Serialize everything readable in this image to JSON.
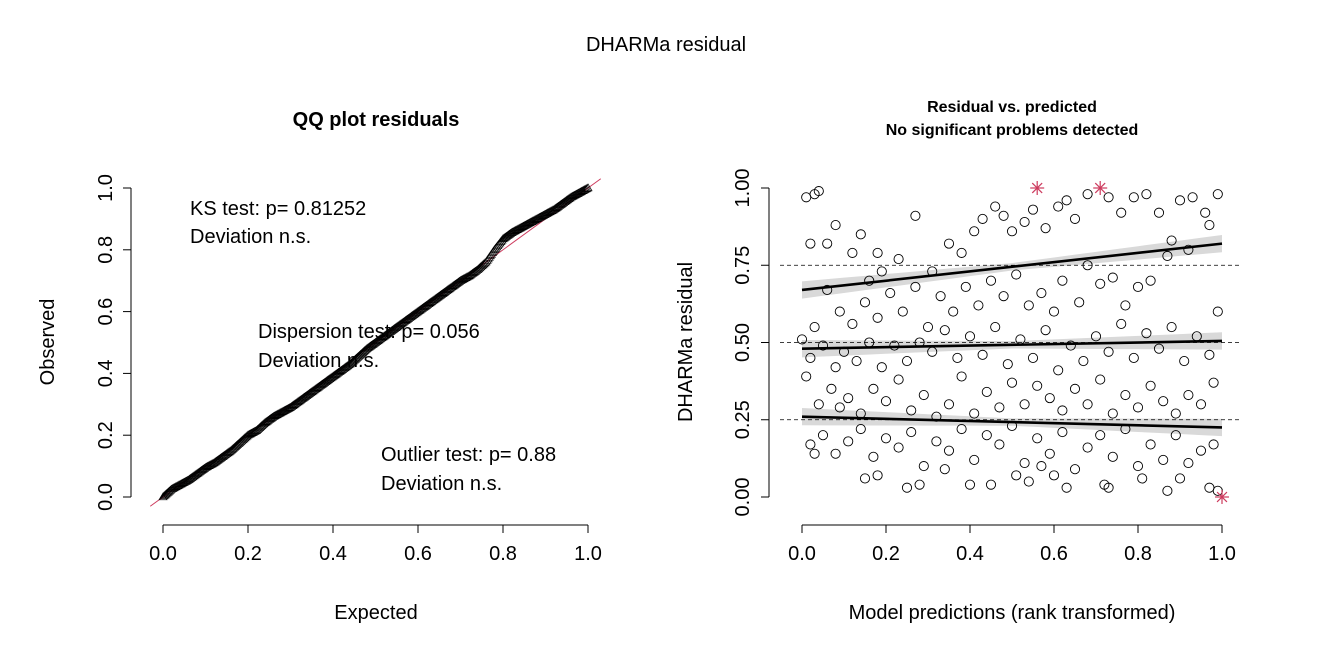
{
  "figure": {
    "title": "DHARMa residual"
  },
  "chart_data": [
    {
      "type": "scatter",
      "title": "QQ plot residuals",
      "xlabel": "Expected",
      "ylabel": "Observed",
      "xlim": [
        0,
        1
      ],
      "ylim": [
        0,
        1
      ],
      "x_ticks": [
        "0.0",
        "0.2",
        "0.4",
        "0.6",
        "0.8",
        "1.0"
      ],
      "y_ticks": [
        "0.0",
        "0.2",
        "0.4",
        "0.6",
        "0.8",
        "1.0"
      ],
      "reference_line": {
        "from": [
          0,
          0
        ],
        "to": [
          1,
          1
        ],
        "color": "#cd3b5e"
      },
      "series": [
        {
          "marker": "triangle",
          "points": [
            [
              0,
              0
            ],
            [
              0.02,
              0.025
            ],
            [
              0.04,
              0.04
            ],
            [
              0.06,
              0.055
            ],
            [
              0.08,
              0.075
            ],
            [
              0.1,
              0.095
            ],
            [
              0.12,
              0.11
            ],
            [
              0.14,
              0.13
            ],
            [
              0.16,
              0.15
            ],
            [
              0.18,
              0.175
            ],
            [
              0.2,
              0.2
            ],
            [
              0.22,
              0.215
            ],
            [
              0.24,
              0.24
            ],
            [
              0.26,
              0.26
            ],
            [
              0.28,
              0.275
            ],
            [
              0.3,
              0.29
            ],
            [
              0.32,
              0.31
            ],
            [
              0.34,
              0.33
            ],
            [
              0.36,
              0.35
            ],
            [
              0.38,
              0.37
            ],
            [
              0.4,
              0.39
            ],
            [
              0.42,
              0.41
            ],
            [
              0.44,
              0.43
            ],
            [
              0.46,
              0.455
            ],
            [
              0.48,
              0.48
            ],
            [
              0.5,
              0.5
            ],
            [
              0.52,
              0.52
            ],
            [
              0.54,
              0.54
            ],
            [
              0.56,
              0.56
            ],
            [
              0.58,
              0.58
            ],
            [
              0.6,
              0.6
            ],
            [
              0.62,
              0.62
            ],
            [
              0.64,
              0.64
            ],
            [
              0.66,
              0.66
            ],
            [
              0.68,
              0.68
            ],
            [
              0.7,
              0.7
            ],
            [
              0.72,
              0.715
            ],
            [
              0.74,
              0.735
            ],
            [
              0.76,
              0.76
            ],
            [
              0.78,
              0.8
            ],
            [
              0.8,
              0.835
            ],
            [
              0.82,
              0.855
            ],
            [
              0.84,
              0.87
            ],
            [
              0.86,
              0.885
            ],
            [
              0.88,
              0.9
            ],
            [
              0.9,
              0.915
            ],
            [
              0.92,
              0.93
            ],
            [
              0.94,
              0.95
            ],
            [
              0.96,
              0.97
            ],
            [
              0.98,
              0.985
            ],
            [
              1,
              1
            ]
          ]
        }
      ],
      "annotations": {
        "ks": [
          "KS test: p= 0.81252",
          "Deviation  n.s."
        ],
        "dispersion": [
          "Dispersion test: p= 0.056",
          "Deviation  n.s."
        ],
        "outlier": [
          "Outlier test: p= 0.88",
          "Deviation  n.s."
        ]
      }
    },
    {
      "type": "scatter",
      "title": "Residual vs. predicted",
      "subtitle": "No significant problems detected",
      "xlabel": "Model predictions (rank transformed)",
      "ylabel": "DHARMa residual",
      "xlim": [
        0,
        1
      ],
      "ylim": [
        0,
        1
      ],
      "x_ticks": [
        "0.0",
        "0.2",
        "0.4",
        "0.6",
        "0.8",
        "1.0"
      ],
      "y_ticks": [
        "0.00",
        "0.25",
        "0.50",
        "0.75",
        "1.00"
      ],
      "reference_lines_y": [
        0.25,
        0.5,
        0.75
      ],
      "grid": false,
      "quantile_fits": [
        {
          "quantile": 0.25,
          "y_at_0": 0.26,
          "y_at_1": 0.225
        },
        {
          "quantile": 0.5,
          "y_at_0": 0.48,
          "y_at_1": 0.505
        },
        {
          "quantile": 0.75,
          "y_at_0": 0.67,
          "y_at_1": 0.82
        }
      ],
      "outliers": {
        "marker": "asterisk",
        "color": "#cd3b5e",
        "points": [
          [
            0.56,
            1.0
          ],
          [
            0.71,
            1.0
          ],
          [
            1.0,
            0.0
          ]
        ]
      },
      "series": [
        {
          "marker": "circle",
          "points": [
            [
              0.01,
              0.97
            ],
            [
              0.03,
              0.98
            ],
            [
              0.04,
              0.99
            ],
            [
              0.02,
              0.82
            ],
            [
              0.06,
              0.82
            ],
            [
              0.08,
              0.88
            ],
            [
              0.12,
              0.79
            ],
            [
              0.14,
              0.85
            ],
            [
              0.18,
              0.79
            ],
            [
              0.16,
              0.7
            ],
            [
              0.19,
              0.73
            ],
            [
              0.23,
              0.77
            ],
            [
              0.27,
              0.91
            ],
            [
              0.31,
              0.73
            ],
            [
              0.35,
              0.82
            ],
            [
              0.38,
              0.79
            ],
            [
              0.41,
              0.86
            ],
            [
              0.43,
              0.9
            ],
            [
              0.46,
              0.94
            ],
            [
              0.48,
              0.91
            ],
            [
              0.5,
              0.86
            ],
            [
              0.53,
              0.89
            ],
            [
              0.55,
              0.93
            ],
            [
              0.58,
              0.87
            ],
            [
              0.61,
              0.94
            ],
            [
              0.63,
              0.96
            ],
            [
              0.65,
              0.9
            ],
            [
              0.68,
              0.98
            ],
            [
              0.73,
              0.97
            ],
            [
              0.76,
              0.92
            ],
            [
              0.79,
              0.97
            ],
            [
              0.82,
              0.98
            ],
            [
              0.85,
              0.92
            ],
            [
              0.88,
              0.83
            ],
            [
              0.9,
              0.96
            ],
            [
              0.93,
              0.97
            ],
            [
              0.96,
              0.92
            ],
            [
              0.99,
              0.98
            ],
            [
              0.97,
              0.88
            ],
            [
              0.92,
              0.8
            ],
            [
              0.87,
              0.78
            ],
            [
              0.83,
              0.7
            ],
            [
              0.8,
              0.68
            ],
            [
              0.77,
              0.62
            ],
            [
              0.74,
              0.71
            ],
            [
              0.71,
              0.69
            ],
            [
              0.68,
              0.75
            ],
            [
              0.66,
              0.63
            ],
            [
              0.62,
              0.7
            ],
            [
              0.6,
              0.6
            ],
            [
              0.57,
              0.66
            ],
            [
              0.54,
              0.62
            ],
            [
              0.51,
              0.72
            ],
            [
              0.48,
              0.65
            ],
            [
              0.45,
              0.7
            ],
            [
              0.42,
              0.62
            ],
            [
              0.39,
              0.68
            ],
            [
              0.36,
              0.6
            ],
            [
              0.33,
              0.65
            ],
            [
              0.3,
              0.55
            ],
            [
              0.27,
              0.68
            ],
            [
              0.24,
              0.6
            ],
            [
              0.21,
              0.66
            ],
            [
              0.18,
              0.58
            ],
            [
              0.15,
              0.63
            ],
            [
              0.12,
              0.56
            ],
            [
              0.09,
              0.6
            ],
            [
              0.06,
              0.67
            ],
            [
              0.03,
              0.55
            ],
            [
              0.0,
              0.51
            ],
            [
              0.02,
              0.45
            ],
            [
              0.05,
              0.49
            ],
            [
              0.08,
              0.42
            ],
            [
              0.1,
              0.47
            ],
            [
              0.13,
              0.44
            ],
            [
              0.16,
              0.5
            ],
            [
              0.19,
              0.42
            ],
            [
              0.22,
              0.49
            ],
            [
              0.25,
              0.44
            ],
            [
              0.28,
              0.5
            ],
            [
              0.31,
              0.47
            ],
            [
              0.34,
              0.54
            ],
            [
              0.37,
              0.45
            ],
            [
              0.4,
              0.52
            ],
            [
              0.43,
              0.46
            ],
            [
              0.46,
              0.55
            ],
            [
              0.49,
              0.43
            ],
            [
              0.52,
              0.51
            ],
            [
              0.55,
              0.45
            ],
            [
              0.58,
              0.54
            ],
            [
              0.61,
              0.41
            ],
            [
              0.64,
              0.49
            ],
            [
              0.67,
              0.44
            ],
            [
              0.7,
              0.52
            ],
            [
              0.73,
              0.47
            ],
            [
              0.76,
              0.56
            ],
            [
              0.79,
              0.45
            ],
            [
              0.82,
              0.53
            ],
            [
              0.85,
              0.48
            ],
            [
              0.88,
              0.55
            ],
            [
              0.91,
              0.44
            ],
            [
              0.94,
              0.52
            ],
            [
              0.97,
              0.46
            ],
            [
              0.99,
              0.6
            ],
            [
              0.01,
              0.39
            ],
            [
              0.04,
              0.3
            ],
            [
              0.07,
              0.35
            ],
            [
              0.09,
              0.29
            ],
            [
              0.11,
              0.32
            ],
            [
              0.14,
              0.27
            ],
            [
              0.17,
              0.35
            ],
            [
              0.2,
              0.31
            ],
            [
              0.23,
              0.38
            ],
            [
              0.26,
              0.28
            ],
            [
              0.29,
              0.33
            ],
            [
              0.32,
              0.26
            ],
            [
              0.35,
              0.3
            ],
            [
              0.38,
              0.39
            ],
            [
              0.41,
              0.27
            ],
            [
              0.44,
              0.34
            ],
            [
              0.47,
              0.29
            ],
            [
              0.5,
              0.37
            ],
            [
              0.53,
              0.3
            ],
            [
              0.56,
              0.36
            ],
            [
              0.59,
              0.32
            ],
            [
              0.62,
              0.28
            ],
            [
              0.65,
              0.35
            ],
            [
              0.68,
              0.3
            ],
            [
              0.71,
              0.38
            ],
            [
              0.74,
              0.27
            ],
            [
              0.77,
              0.33
            ],
            [
              0.8,
              0.29
            ],
            [
              0.83,
              0.36
            ],
            [
              0.86,
              0.31
            ],
            [
              0.89,
              0.27
            ],
            [
              0.92,
              0.33
            ],
            [
              0.95,
              0.3
            ],
            [
              0.98,
              0.37
            ],
            [
              0.02,
              0.17
            ],
            [
              0.05,
              0.2
            ],
            [
              0.08,
              0.14
            ],
            [
              0.11,
              0.18
            ],
            [
              0.14,
              0.22
            ],
            [
              0.17,
              0.13
            ],
            [
              0.2,
              0.19
            ],
            [
              0.23,
              0.16
            ],
            [
              0.26,
              0.21
            ],
            [
              0.29,
              0.1
            ],
            [
              0.32,
              0.18
            ],
            [
              0.35,
              0.15
            ],
            [
              0.38,
              0.22
            ],
            [
              0.41,
              0.12
            ],
            [
              0.44,
              0.2
            ],
            [
              0.47,
              0.17
            ],
            [
              0.5,
              0.23
            ],
            [
              0.53,
              0.11
            ],
            [
              0.56,
              0.19
            ],
            [
              0.59,
              0.14
            ],
            [
              0.62,
              0.21
            ],
            [
              0.65,
              0.09
            ],
            [
              0.68,
              0.16
            ],
            [
              0.71,
              0.2
            ],
            [
              0.74,
              0.13
            ],
            [
              0.77,
              0.22
            ],
            [
              0.8,
              0.1
            ],
            [
              0.83,
              0.17
            ],
            [
              0.86,
              0.12
            ],
            [
              0.89,
              0.2
            ],
            [
              0.92,
              0.11
            ],
            [
              0.95,
              0.15
            ],
            [
              0.98,
              0.17
            ],
            [
              0.03,
              0.14
            ],
            [
              0.15,
              0.06
            ],
            [
              0.18,
              0.07
            ],
            [
              0.25,
              0.03
            ],
            [
              0.28,
              0.04
            ],
            [
              0.34,
              0.09
            ],
            [
              0.4,
              0.04
            ],
            [
              0.45,
              0.04
            ],
            [
              0.51,
              0.07
            ],
            [
              0.54,
              0.05
            ],
            [
              0.57,
              0.1
            ],
            [
              0.6,
              0.07
            ],
            [
              0.63,
              0.03
            ],
            [
              0.72,
              0.04
            ],
            [
              0.73,
              0.03
            ],
            [
              0.81,
              0.06
            ],
            [
              0.87,
              0.02
            ],
            [
              0.9,
              0.06
            ],
            [
              0.97,
              0.03
            ],
            [
              0.99,
              0.02
            ]
          ]
        }
      ]
    }
  ]
}
